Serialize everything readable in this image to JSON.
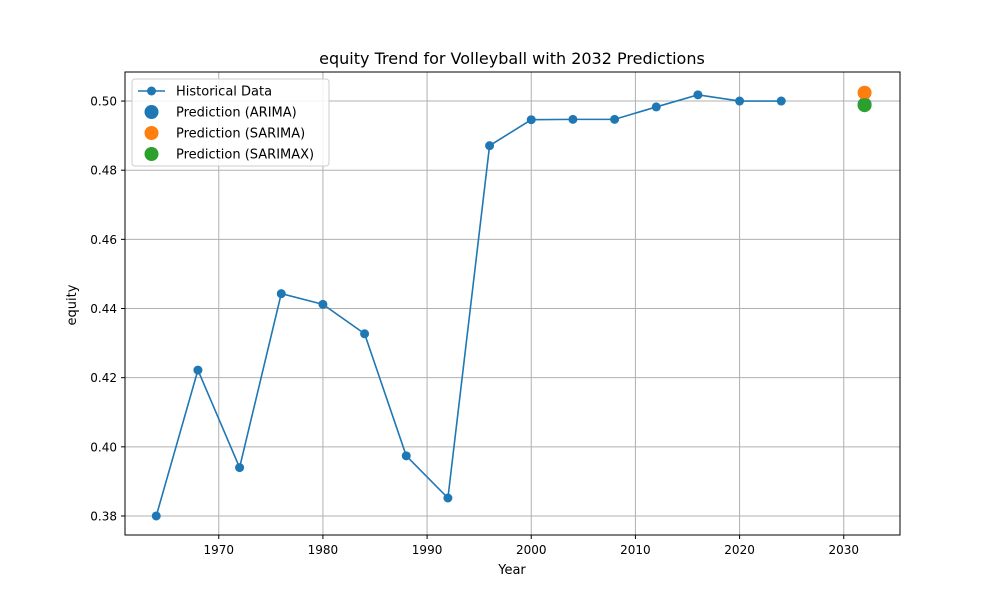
{
  "chart_data": {
    "type": "line",
    "title": "equity Trend for Volleyball with 2032 Predictions",
    "xlabel": "Year",
    "ylabel": "equity",
    "xlim": [
      1961,
      2035.4
    ],
    "ylim": [
      0.3745,
      0.5084
    ],
    "xticks": [
      1970,
      1980,
      1990,
      2000,
      2010,
      2020,
      2030
    ],
    "yticks": [
      0.38,
      0.4,
      0.42,
      0.44,
      0.46,
      0.48,
      0.5
    ],
    "ytick_labels": [
      "0.38",
      "0.40",
      "0.42",
      "0.44",
      "0.46",
      "0.48",
      "0.50"
    ],
    "grid": true,
    "legend_position": "top-left",
    "series": [
      {
        "name": "Historical Data",
        "color": "#1f77b4",
        "marker": "circle",
        "line": true,
        "x": [
          1964,
          1968,
          1972,
          1976,
          1980,
          1984,
          1988,
          1992,
          1996,
          2000,
          2004,
          2008,
          2012,
          2016,
          2020,
          2024
        ],
        "y": [
          0.38,
          0.4222,
          0.394,
          0.4443,
          0.4412,
          0.4327,
          0.3974,
          0.3852,
          0.4871,
          0.4946,
          0.4947,
          0.4947,
          0.4983,
          0.5018,
          0.5,
          0.5
        ]
      },
      {
        "name": "Prediction (ARIMA)",
        "color": "#1f77b4",
        "marker": "circle",
        "line": false,
        "x": [
          2032
        ],
        "y": [
          0.499
        ]
      },
      {
        "name": "Prediction (SARIMA)",
        "color": "#ff7f0e",
        "marker": "circle",
        "line": false,
        "x": [
          2032
        ],
        "y": [
          0.5024
        ]
      },
      {
        "name": "Prediction (SARIMAX)",
        "color": "#2ca02c",
        "marker": "circle",
        "line": false,
        "x": [
          2032
        ],
        "y": [
          0.4988
        ]
      }
    ]
  }
}
